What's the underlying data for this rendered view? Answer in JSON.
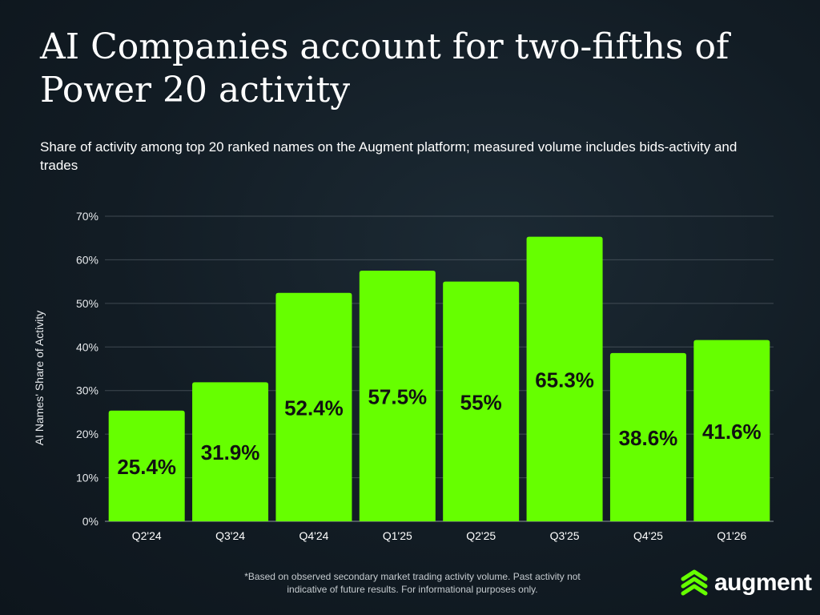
{
  "chart_data": {
    "type": "bar",
    "title": "AI Companies account for two-fifths of Power 20 activity",
    "subtitle": "Share of activity among top 20 ranked names on the Augment platform; measured volume includes bids-activity and trades",
    "categories": [
      "Q2'24",
      "Q3'24",
      "Q4'24",
      "Q1'25",
      "Q2'25",
      "Q3'25",
      "Q4'25",
      "Q1'26"
    ],
    "values": [
      25.4,
      31.9,
      52.4,
      57.5,
      55,
      65.3,
      38.6,
      41.6
    ],
    "data_labels": [
      "25.4%",
      "31.9%",
      "52.4%",
      "57.5%",
      "55%",
      "65.3%",
      "38.6%",
      "41.6%"
    ],
    "ylabel": "AI Names' Share of Activity",
    "xlabel": "",
    "ylim": [
      0,
      70
    ],
    "yticks": [
      "0%",
      "10%",
      "20%",
      "30%",
      "40%",
      "50%",
      "60%",
      "70%"
    ],
    "grid": true,
    "bar_color": "#66ff00"
  },
  "footnote": "*Based on observed secondary market trading activity volume. Past activity not indicative of future results. For informational purposes only.",
  "brand": {
    "name": "augment",
    "color": "#66ff00"
  }
}
